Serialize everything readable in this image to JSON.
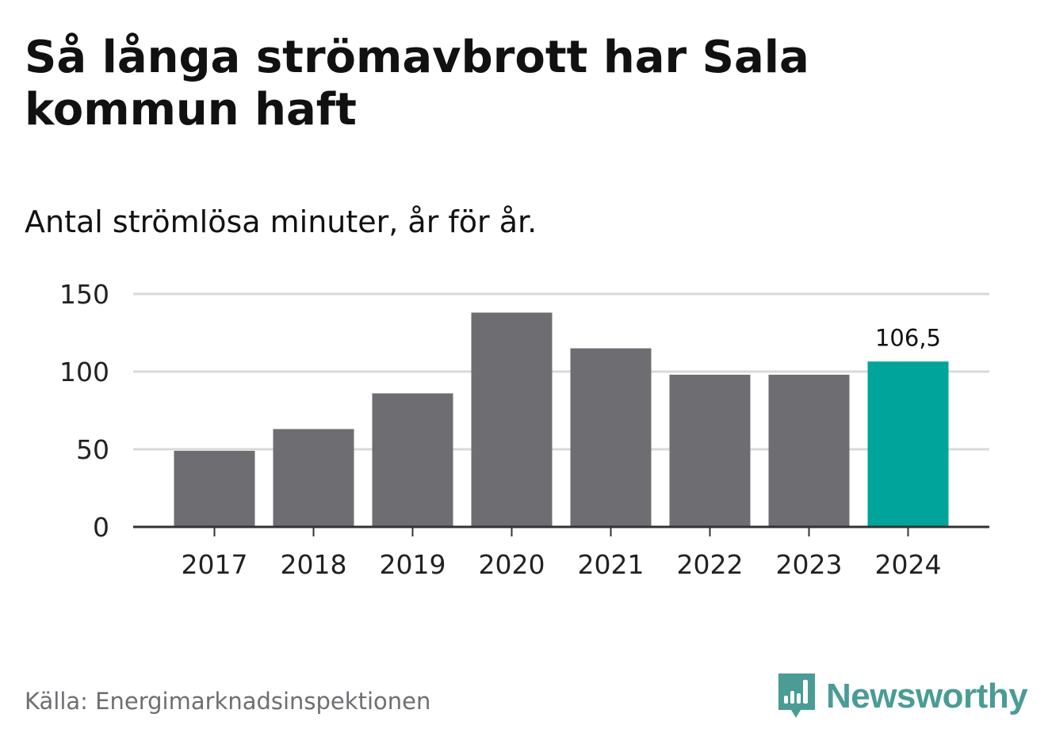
{
  "title": "Så långa strömavbrott har Sala kommun haft",
  "subtitle": "Antal strömlösa minuter, år för år.",
  "source": "Källa: Energimarknadsinspektionen",
  "brand": {
    "name": "Newsworthy",
    "color": "#4a9c95"
  },
  "colors": {
    "bar": "#6e6d72",
    "highlight": "#00a49a",
    "grid": "#d9d9d9",
    "axis": "#333333"
  },
  "chart_data": {
    "type": "bar",
    "categories": [
      "2017",
      "2018",
      "2019",
      "2020",
      "2021",
      "2022",
      "2023",
      "2024"
    ],
    "values": [
      49,
      63,
      86,
      138,
      115,
      98,
      98,
      106.5
    ],
    "highlight_index": 7,
    "data_labels": [
      {
        "index": 7,
        "text": "106,5"
      }
    ],
    "title": "Så långa strömavbrott har Sala kommun haft",
    "subtitle": "Antal strömlösa minuter, år för år.",
    "xlabel": "",
    "ylabel": "",
    "ylim": [
      0,
      150
    ],
    "yticks": [
      0,
      50,
      100,
      150
    ],
    "grid": true
  }
}
